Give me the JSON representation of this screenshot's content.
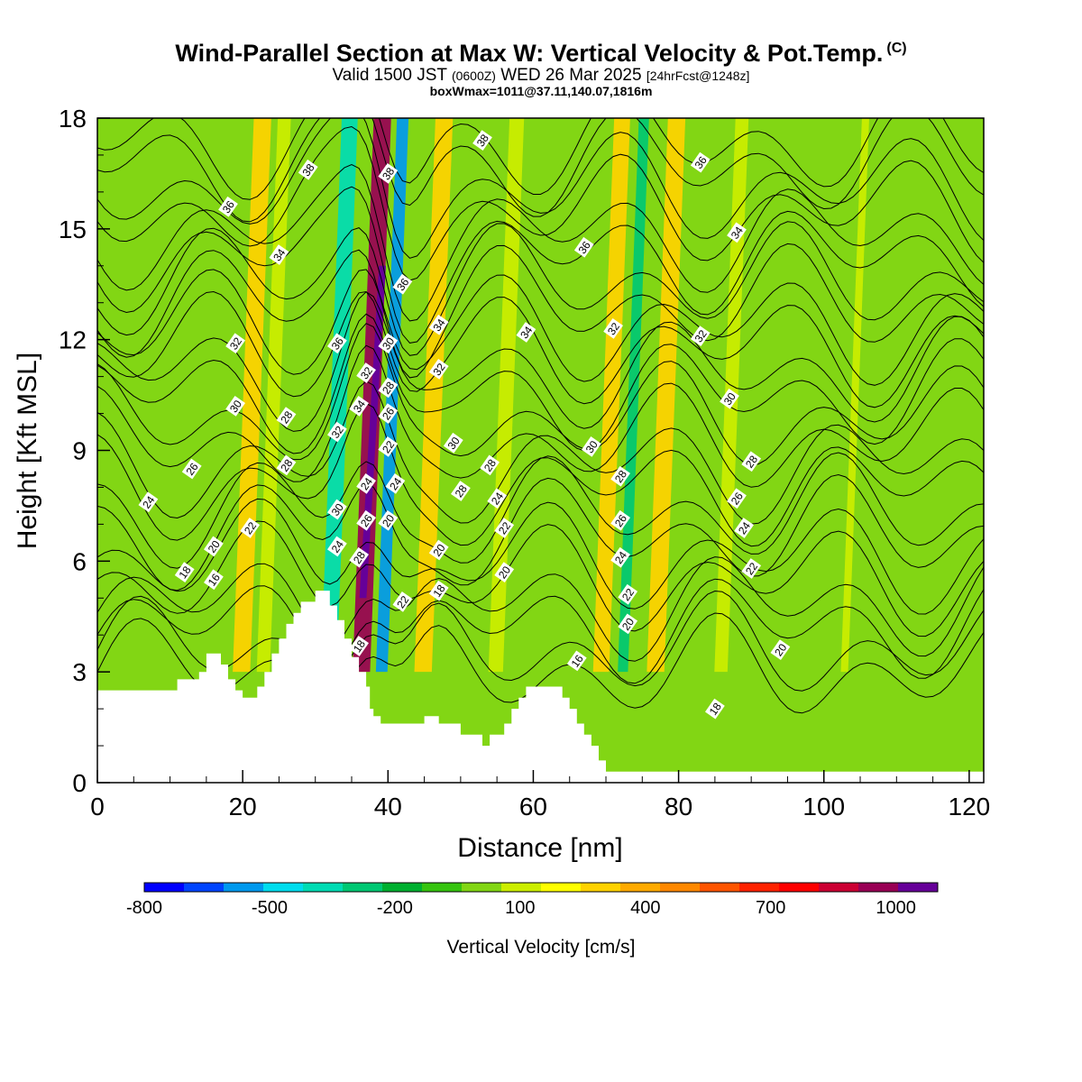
{
  "header": {
    "title": "Wind-Parallel Section at Max W: Vertical Velocity & Pot.Temp.",
    "copyright": "(C)",
    "valid_prefix": "Valid 1500 JST",
    "valid_utc": "(0600Z)",
    "valid_date": "WED 26 Mar 2025",
    "forecast": "[24hrFcst@1248z]",
    "box_info": "boxWmax=1011@37.11,140.07,1816m"
  },
  "chart_data": {
    "type": "heatmap",
    "xlabel": "Distance [nm]",
    "ylabel": "Height [Kft MSL]",
    "xlim": [
      0,
      122
    ],
    "ylim": [
      0,
      18
    ],
    "xticks": [
      0,
      20,
      40,
      60,
      80,
      100,
      120
    ],
    "yticks": [
      0,
      3,
      6,
      9,
      12,
      15,
      18
    ],
    "colorbar": {
      "label": "Vertical Velocity [cm/s]",
      "ticks": [
        -800,
        -500,
        -200,
        100,
        400,
        700,
        1000
      ],
      "range": [
        -800,
        1100
      ],
      "colors": [
        "#0000ff",
        "#0044ff",
        "#0099ee",
        "#00ddee",
        "#00dcb4",
        "#00c873",
        "#00b030",
        "#36c40f",
        "#82d614",
        "#ccee00",
        "#ffff00",
        "#ffd200",
        "#ffaa00",
        "#ff8800",
        "#ff5500",
        "#ff2200",
        "#ff0000",
        "#cc0033",
        "#990055",
        "#660099"
      ]
    },
    "terrain_kft": [
      [
        0,
        2.5
      ],
      [
        11,
        2.5
      ],
      [
        11,
        2.8
      ],
      [
        14,
        2.8
      ],
      [
        14,
        3.0
      ],
      [
        15,
        3.0
      ],
      [
        15,
        3.5
      ],
      [
        17,
        3.5
      ],
      [
        17,
        3.2
      ],
      [
        18,
        3.2
      ],
      [
        18,
        2.8
      ],
      [
        19,
        2.8
      ],
      [
        19,
        2.5
      ],
      [
        20,
        2.5
      ],
      [
        20,
        2.3
      ],
      [
        22,
        2.3
      ],
      [
        22,
        2.6
      ],
      [
        23,
        2.6
      ],
      [
        23,
        3.0
      ],
      [
        24,
        3.0
      ],
      [
        24,
        3.5
      ],
      [
        25,
        3.5
      ],
      [
        25,
        3.9
      ],
      [
        26,
        3.9
      ],
      [
        26,
        4.3
      ],
      [
        27,
        4.3
      ],
      [
        27,
        4.6
      ],
      [
        28,
        4.6
      ],
      [
        28,
        4.9
      ],
      [
        30,
        4.9
      ],
      [
        30,
        5.2
      ],
      [
        32,
        5.2
      ],
      [
        32,
        4.8
      ],
      [
        33,
        4.8
      ],
      [
        33,
        4.4
      ],
      [
        34,
        4.4
      ],
      [
        34,
        3.9
      ],
      [
        35,
        3.9
      ],
      [
        35,
        3.4
      ],
      [
        36,
        3.4
      ],
      [
        36,
        3.0
      ],
      [
        37,
        3.0
      ],
      [
        37,
        2.6
      ],
      [
        37.5,
        2.6
      ],
      [
        37.5,
        2.0
      ],
      [
        38,
        2.0
      ],
      [
        38,
        1.8
      ],
      [
        39,
        1.8
      ],
      [
        39,
        1.6
      ],
      [
        45,
        1.6
      ],
      [
        45,
        1.8
      ],
      [
        47,
        1.8
      ],
      [
        47,
        1.6
      ],
      [
        50,
        1.6
      ],
      [
        50,
        1.3
      ],
      [
        53,
        1.3
      ],
      [
        53,
        1.0
      ],
      [
        54,
        1.0
      ],
      [
        54,
        1.3
      ],
      [
        56,
        1.3
      ],
      [
        56,
        1.6
      ],
      [
        57,
        1.6
      ],
      [
        57,
        2.0
      ],
      [
        58,
        2.0
      ],
      [
        58,
        2.3
      ],
      [
        59,
        2.3
      ],
      [
        59,
        2.6
      ],
      [
        64,
        2.6
      ],
      [
        64,
        2.3
      ],
      [
        65,
        2.3
      ],
      [
        65,
        2.0
      ],
      [
        66,
        2.0
      ],
      [
        66,
        1.6
      ],
      [
        67,
        1.6
      ],
      [
        67,
        1.3
      ],
      [
        68,
        1.3
      ],
      [
        68,
        1.0
      ],
      [
        69,
        1.0
      ],
      [
        69,
        0.6
      ],
      [
        70,
        0.6
      ],
      [
        70,
        0.3
      ],
      [
        122,
        0.3
      ]
    ],
    "vertical_velocity_bands": [
      {
        "x": 20.5,
        "w": 2.4,
        "value": 320
      },
      {
        "x": 23.5,
        "w": 1.8,
        "value": 120
      },
      {
        "x": 32.5,
        "w": 2.2,
        "value": -420
      },
      {
        "x": 37.0,
        "w": 2.4,
        "value": 920
      },
      {
        "x": 39.8,
        "w": 1.6,
        "value": -560
      },
      {
        "x": 45.5,
        "w": 2.4,
        "value": 320
      },
      {
        "x": 55.5,
        "w": 2.0,
        "value": 120
      },
      {
        "x": 70.0,
        "w": 2.2,
        "value": 330
      },
      {
        "x": 73.0,
        "w": 1.4,
        "value": -250
      },
      {
        "x": 77.5,
        "w": 2.4,
        "value": 330
      },
      {
        "x": 86.5,
        "w": 1.8,
        "value": 120
      },
      {
        "x": 103.5,
        "w": 1.0,
        "value": 120
      }
    ],
    "theta_contours_C": [
      16,
      18,
      20,
      22,
      24,
      26,
      28,
      30,
      32,
      34,
      36,
      38
    ],
    "contour_labels": [
      {
        "x": 29,
        "y": 16.6,
        "t": "38"
      },
      {
        "x": 40,
        "y": 16.5,
        "t": "38"
      },
      {
        "x": 53,
        "y": 17.4,
        "t": "38"
      },
      {
        "x": 18,
        "y": 15.6,
        "t": "36"
      },
      {
        "x": 42,
        "y": 13.5,
        "t": "36"
      },
      {
        "x": 67,
        "y": 14.5,
        "t": "36"
      },
      {
        "x": 83,
        "y": 16.8,
        "t": "36"
      },
      {
        "x": 25,
        "y": 14.3,
        "t": "34"
      },
      {
        "x": 47,
        "y": 12.4,
        "t": "34"
      },
      {
        "x": 59,
        "y": 12.2,
        "t": "34"
      },
      {
        "x": 88,
        "y": 14.9,
        "t": "34"
      },
      {
        "x": 19,
        "y": 11.9,
        "t": "32"
      },
      {
        "x": 71,
        "y": 12.3,
        "t": "32"
      },
      {
        "x": 83,
        "y": 12.1,
        "t": "32"
      },
      {
        "x": 33,
        "y": 11.9,
        "t": "36"
      },
      {
        "x": 40,
        "y": 11.9,
        "t": "30"
      },
      {
        "x": 37,
        "y": 11.1,
        "t": "32"
      },
      {
        "x": 40,
        "y": 10.7,
        "t": "28"
      },
      {
        "x": 47,
        "y": 11.2,
        "t": "32"
      },
      {
        "x": 36,
        "y": 10.2,
        "t": "34"
      },
      {
        "x": 40,
        "y": 10.0,
        "t": "26"
      },
      {
        "x": 19,
        "y": 10.2,
        "t": "30"
      },
      {
        "x": 26,
        "y": 9.9,
        "t": "28"
      },
      {
        "x": 33,
        "y": 9.5,
        "t": "32"
      },
      {
        "x": 87,
        "y": 10.4,
        "t": "30"
      },
      {
        "x": 49,
        "y": 9.2,
        "t": "30"
      },
      {
        "x": 68,
        "y": 9.1,
        "t": "30"
      },
      {
        "x": 40,
        "y": 9.1,
        "t": "22"
      },
      {
        "x": 13,
        "y": 8.5,
        "t": "26"
      },
      {
        "x": 26,
        "y": 8.6,
        "t": "28"
      },
      {
        "x": 54,
        "y": 8.6,
        "t": "28"
      },
      {
        "x": 90,
        "y": 8.7,
        "t": "28"
      },
      {
        "x": 37,
        "y": 8.1,
        "t": "24"
      },
      {
        "x": 41,
        "y": 8.1,
        "t": "24"
      },
      {
        "x": 50,
        "y": 7.9,
        "t": "28"
      },
      {
        "x": 72,
        "y": 8.3,
        "t": "28"
      },
      {
        "x": 55,
        "y": 7.7,
        "t": "24"
      },
      {
        "x": 88,
        "y": 7.7,
        "t": "26"
      },
      {
        "x": 7,
        "y": 7.6,
        "t": "24"
      },
      {
        "x": 33,
        "y": 7.4,
        "t": "30"
      },
      {
        "x": 40,
        "y": 7.1,
        "t": "20"
      },
      {
        "x": 37,
        "y": 7.1,
        "t": "26"
      },
      {
        "x": 72,
        "y": 7.1,
        "t": "26"
      },
      {
        "x": 21,
        "y": 6.9,
        "t": "22"
      },
      {
        "x": 56,
        "y": 6.9,
        "t": "22"
      },
      {
        "x": 89,
        "y": 6.9,
        "t": "24"
      },
      {
        "x": 33,
        "y": 6.4,
        "t": "24"
      },
      {
        "x": 16,
        "y": 6.4,
        "t": "20"
      },
      {
        "x": 47,
        "y": 6.3,
        "t": "20"
      },
      {
        "x": 36,
        "y": 6.1,
        "t": "28"
      },
      {
        "x": 72,
        "y": 6.1,
        "t": "24"
      },
      {
        "x": 56,
        "y": 5.7,
        "t": "20"
      },
      {
        "x": 90,
        "y": 5.8,
        "t": "22"
      },
      {
        "x": 12,
        "y": 5.7,
        "t": "18"
      },
      {
        "x": 16,
        "y": 5.5,
        "t": "16"
      },
      {
        "x": 47,
        "y": 5.2,
        "t": "18"
      },
      {
        "x": 73,
        "y": 5.1,
        "t": "22"
      },
      {
        "x": 42,
        "y": 4.9,
        "t": "22"
      },
      {
        "x": 73,
        "y": 4.3,
        "t": "20"
      },
      {
        "x": 36,
        "y": 3.7,
        "t": "18"
      },
      {
        "x": 94,
        "y": 3.6,
        "t": "20"
      },
      {
        "x": 66,
        "y": 3.3,
        "t": "16"
      },
      {
        "x": 85,
        "y": 2.0,
        "t": "18"
      }
    ]
  }
}
